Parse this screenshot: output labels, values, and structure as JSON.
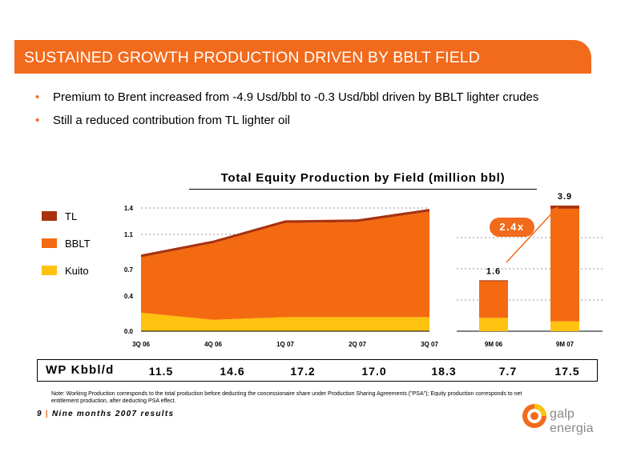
{
  "slide": {
    "title": "SUSTAINED GROWTH PRODUCTION DRIVEN BY BBLT FIELD",
    "bullets": [
      "Premium to Brent increased from -4.9 Usd/bbl to -0.3 Usd/bbl driven by BBLT lighter crudes",
      "Still a reduced contribution from TL lighter oil"
    ],
    "bullet_marker": "•"
  },
  "chart_data": [
    {
      "type": "area",
      "title": "Total Equity Production by Field (million bbl)",
      "categories": [
        "3Q 06",
        "4Q 06",
        "1Q 07",
        "2Q 07",
        "3Q 07"
      ],
      "series": [
        {
          "name": "Kuito",
          "values": [
            0.21,
            0.13,
            0.16,
            0.16,
            0.16
          ]
        },
        {
          "name": "BBLT",
          "values": [
            0.63,
            0.87,
            1.07,
            1.08,
            1.2
          ]
        },
        {
          "name": "TL",
          "values": [
            0.03,
            0.03,
            0.03,
            0.03,
            0.03
          ]
        }
      ],
      "ylim": [
        0,
        1.4
      ],
      "yticks": [
        "0.0",
        "0.4",
        "0.7",
        "1.1",
        "1.4"
      ],
      "grid": true,
      "legend": "left"
    },
    {
      "type": "bar",
      "categories": [
        "9M 06",
        "9M 07"
      ],
      "series": [
        {
          "name": "Kuito",
          "values": [
            0.42,
            0.31
          ]
        },
        {
          "name": "BBLT",
          "values": [
            1.15,
            3.54
          ]
        },
        {
          "name": "TL",
          "values": [
            0.03,
            0.1
          ]
        }
      ],
      "totals": [
        "1.6",
        "3.9"
      ],
      "ylim": [
        0,
        4.2
      ],
      "growth_label": "2.4x"
    }
  ],
  "legend": [
    {
      "label": "TL",
      "color": "#a8320f"
    },
    {
      "label": "BBLT",
      "color": "#f46a10"
    },
    {
      "label": "Kuito",
      "color": "#ffc20e"
    }
  ],
  "wp_row": {
    "label": "WP Kbbl/d",
    "values": [
      "11.5",
      "14.6",
      "17.2",
      "17.0",
      "18.3",
      "7.7",
      "17.5"
    ]
  },
  "note": "Note: Working Production corresponds to the total production before deducting the concessionaire share under Production Sharing Agreements (\"PSA\"); Equity production corresponds to net entitlement production, after deducting PSA effect.",
  "footer": {
    "page": "9",
    "separator": "|",
    "text": "Nine months 2007 results"
  },
  "logo": {
    "text": "galp energia"
  },
  "colors": {
    "accent": "#f26a1b",
    "tl": "#a8320f",
    "bblt": "#f46a10",
    "kuito": "#ffc20e"
  }
}
